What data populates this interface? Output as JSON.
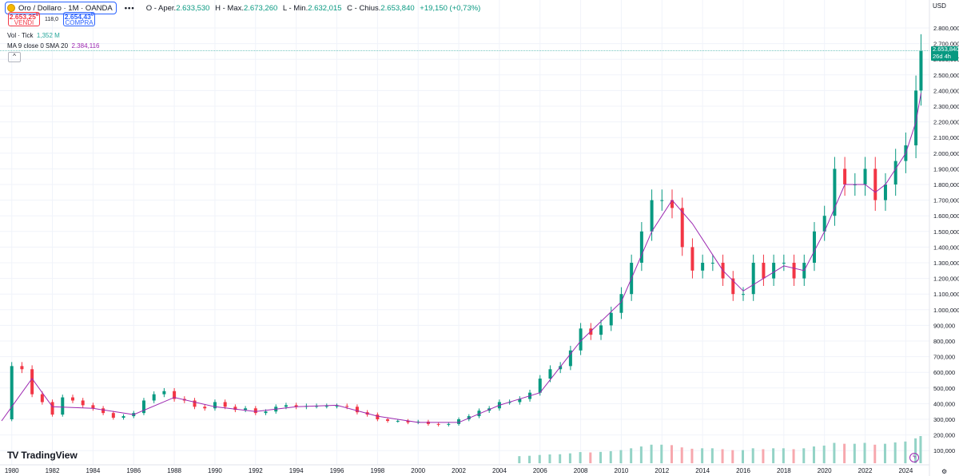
{
  "header": {
    "symbol": "Oro / Dollaro · 1M · OANDA",
    "more": "•••",
    "ohlc": {
      "o_label": "O - Aper.",
      "o_value": "2.633,530",
      "h_label": "H - Max.",
      "h_value": "2.673,260",
      "l_label": "L - Min.",
      "l_value": "2.632,015",
      "c_label": "C - Chius.",
      "c_value": "2.653,840",
      "change": "+19,150 (+0,73%)"
    }
  },
  "trade": {
    "sell_price": "2.653,25",
    "sell_sup": "8",
    "sell_label": "VENDI",
    "spread": "118,0",
    "buy_price": "2.654,43",
    "buy_sup": "0",
    "buy_label": "COMPRA"
  },
  "indicators": {
    "vol_label": "Vol · Tick",
    "vol_value": "1,352 M",
    "ma_label": "MA 9 close 0 SMA 20",
    "ma_value": "2.384,116"
  },
  "collapse_icon": "^",
  "currency": "USD",
  "price_tag": {
    "value": "2.653,840",
    "countdown": "26d 4h"
  },
  "logo_text": "TradingView",
  "colors": {
    "up": "#089981",
    "down": "#f23645",
    "ma": "#9c27b0",
    "vol_up": "#93d3c6",
    "vol_down": "#f7a8ae",
    "line": "#26a69a"
  },
  "chart_data": {
    "type": "candlestick",
    "y_axis_ticks": [
      "2.800,000",
      "2.700,000",
      "2.600,000",
      "2.500,000",
      "2.400,000",
      "2.300,000",
      "2.200,000",
      "2.100,000",
      "2.000,000",
      "1.900,000",
      "1.800,000",
      "1.700,000",
      "1.600,000",
      "1.500,000",
      "1.400,000",
      "1.300,000",
      "1.200,000",
      "1.100,000",
      "1.000,000",
      "900,000",
      "800,000",
      "700,000",
      "600,000",
      "500,000",
      "400,000",
      "300,000",
      "200,000",
      "100,000"
    ],
    "x_axis_ticks": [
      "1980",
      "1982",
      "1984",
      "1986",
      "1988",
      "1990",
      "1992",
      "1994",
      "1996",
      "1998",
      "2000",
      "2002",
      "2004",
      "2006",
      "2008",
      "2010",
      "2012",
      "2014",
      "2016",
      "2018",
      "2020",
      "2022",
      "2024"
    ],
    "ylim": [
      300,
      2800
    ],
    "series": [
      {
        "name": "Close",
        "x": [
          1979.5,
          1980,
          1980.5,
          1981,
          1981.5,
          1982,
          1982.5,
          1983,
          1983.5,
          1984,
          1984.5,
          1985,
          1985.5,
          1986,
          1986.5,
          1987,
          1987.5,
          1988,
          1988.5,
          1989,
          1989.5,
          1990,
          1990.5,
          1991,
          1991.5,
          1992,
          1992.5,
          1993,
          1993.5,
          1994,
          1994.5,
          1995,
          1995.5,
          1996,
          1996.5,
          1997,
          1997.5,
          1998,
          1998.5,
          1999,
          1999.5,
          2000,
          2000.5,
          2001,
          2001.5,
          2002,
          2002.5,
          2003,
          2003.5,
          2004,
          2004.5,
          2005,
          2005.5,
          2006,
          2006.5,
          2007,
          2007.5,
          2008,
          2008.5,
          2009,
          2009.5,
          2010,
          2010.5,
          2011,
          2011.5,
          2012,
          2012.5,
          2013,
          2013.5,
          2014,
          2014.5,
          2015,
          2015.5,
          2016,
          2016.5,
          2017,
          2017.5,
          2018,
          2018.5,
          2019,
          2019.5,
          2020,
          2020.5,
          2021,
          2021.5,
          2022,
          2022.5,
          2023,
          2023.5,
          2024,
          2024.5,
          2024.75
        ],
        "y": [
          300,
          640,
          620,
          460,
          410,
          330,
          440,
          420,
          390,
          370,
          340,
          310,
          320,
          340,
          420,
          460,
          480,
          430,
          420,
          380,
          370,
          410,
          380,
          360,
          370,
          340,
          350,
          380,
          390,
          380,
          385,
          385,
          385,
          385,
          380,
          345,
          330,
          300,
          290,
          290,
          280,
          285,
          270,
          265,
          270,
          300,
          320,
          355,
          370,
          410,
          410,
          430,
          470,
          560,
          620,
          640,
          740,
          880,
          840,
          900,
          980,
          1100,
          1300,
          1500,
          1700,
          1700,
          1650,
          1400,
          1250,
          1300,
          1300,
          1200,
          1100,
          1100,
          1300,
          1200,
          1300,
          1300,
          1200,
          1300,
          1500,
          1600,
          1900,
          1800,
          1800,
          1900,
          1700,
          1800,
          1950,
          2050,
          2400,
          2653.84
        ]
      },
      {
        "name": "MA 9 close 0 SMA 20",
        "x": [
          1979.5,
          1981,
          1982,
          1984,
          1986,
          1988,
          1990,
          1992,
          1994,
          1996,
          1998,
          2000,
          2002,
          2004,
          2006,
          2008,
          2010,
          2011.5,
          2012.5,
          2013.5,
          2015,
          2016,
          2018,
          2019,
          2020,
          2021,
          2022,
          2022.5,
          2023,
          2023.5,
          2024,
          2024.5,
          2024.75
        ],
        "y": [
          290,
          560,
          380,
          370,
          330,
          440,
          380,
          350,
          380,
          390,
          320,
          280,
          280,
          390,
          470,
          800,
          1050,
          1500,
          1700,
          1550,
          1250,
          1120,
          1280,
          1250,
          1500,
          1800,
          1800,
          1750,
          1800,
          1900,
          2000,
          2200,
          2384.116
        ]
      }
    ],
    "volume_note": "Vol · Tick"
  }
}
